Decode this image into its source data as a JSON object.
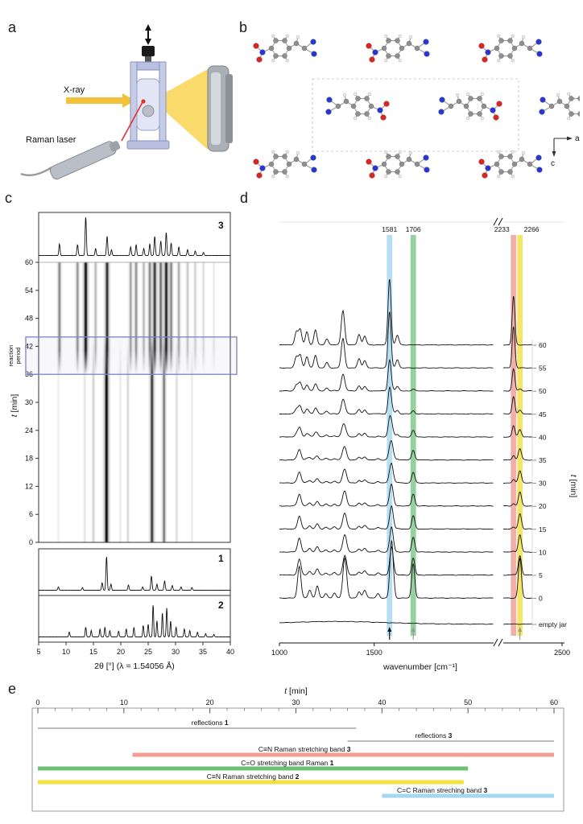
{
  "figure": {
    "letters": {
      "a": "a",
      "b": "b",
      "c": "c",
      "d": "d",
      "e": "e"
    }
  },
  "panel_a": {
    "xray_label": "X-ray",
    "raman_label": "Raman laser"
  },
  "panel_b": {
    "axis_labels": {
      "a": "a",
      "c": "c"
    }
  },
  "chart_data": [
    {
      "id": "panel_c_xrd_map",
      "type": "heatmap",
      "xlabel": "2θ [°] (λ = 1.54056 Å)",
      "ylabel_var": "t",
      "ylabel_rest": " [min]",
      "xlim": [
        5,
        40
      ],
      "x_ticks": [
        5,
        10,
        15,
        20,
        25,
        30,
        35,
        40
      ],
      "ylim": [
        0,
        60
      ],
      "y_ticks": [
        0,
        6,
        12,
        18,
        24,
        30,
        36,
        42,
        48,
        54,
        60
      ],
      "reaction_period": {
        "label_line1": "reaction",
        "label_line2": "period",
        "t_start": 36,
        "t_end": 44,
        "color": "#7b81cc"
      },
      "trace_labels": {
        "product": "3",
        "reactant1": "1",
        "reactant2": "2"
      },
      "reactant_streaks": [
        [
          17.4,
          1.0
        ],
        [
          25.7,
          0.8
        ],
        [
          27.9,
          0.55
        ],
        [
          15.0,
          0.2
        ],
        [
          21.3,
          0.18
        ],
        [
          13.4,
          0.12
        ],
        [
          30.2,
          0.15
        ],
        [
          33.0,
          0.1
        ],
        [
          8.6,
          0.08
        ],
        [
          19.9,
          0.1
        ]
      ],
      "product_streaks": [
        [
          8.8,
          0.5
        ],
        [
          12.1,
          0.45
        ],
        [
          13.6,
          0.95
        ],
        [
          15.4,
          0.3
        ],
        [
          17.5,
          0.85
        ],
        [
          21.8,
          0.4
        ],
        [
          22.8,
          0.45
        ],
        [
          24.2,
          0.3
        ],
        [
          25.3,
          0.5
        ],
        [
          26.2,
          0.8
        ],
        [
          27.3,
          0.6
        ],
        [
          28.3,
          0.9
        ],
        [
          29.2,
          0.5
        ],
        [
          30.6,
          0.35
        ],
        [
          32.2,
          0.25
        ],
        [
          33.6,
          0.2
        ],
        [
          35.1,
          0.15
        ],
        [
          37.0,
          0.1
        ]
      ],
      "pattern_3_peaks": [
        [
          8.8,
          0.3
        ],
        [
          12.1,
          0.28
        ],
        [
          13.6,
          1.0
        ],
        [
          15.4,
          0.18
        ],
        [
          17.5,
          0.5
        ],
        [
          18.3,
          0.15
        ],
        [
          21.8,
          0.22
        ],
        [
          22.8,
          0.28
        ],
        [
          24.2,
          0.18
        ],
        [
          25.3,
          0.3
        ],
        [
          26.2,
          0.5
        ],
        [
          27.3,
          0.38
        ],
        [
          28.3,
          0.6
        ],
        [
          29.2,
          0.32
        ],
        [
          30.6,
          0.22
        ],
        [
          32.2,
          0.15
        ],
        [
          33.6,
          0.12
        ],
        [
          35.1,
          0.08
        ]
      ],
      "pattern_1_peaks": [
        [
          8.6,
          0.1
        ],
        [
          13.0,
          0.08
        ],
        [
          16.6,
          0.22
        ],
        [
          17.4,
          1.0
        ],
        [
          18.2,
          0.18
        ],
        [
          21.4,
          0.16
        ],
        [
          24.0,
          0.1
        ],
        [
          25.6,
          0.42
        ],
        [
          26.6,
          0.18
        ],
        [
          28.0,
          0.28
        ],
        [
          29.4,
          0.14
        ],
        [
          31.0,
          0.1
        ],
        [
          33.0,
          0.08
        ]
      ],
      "pattern_2_peaks": [
        [
          10.6,
          0.15
        ],
        [
          13.6,
          0.3
        ],
        [
          14.6,
          0.2
        ],
        [
          16.2,
          0.25
        ],
        [
          17.1,
          0.3
        ],
        [
          18.0,
          0.2
        ],
        [
          19.6,
          0.18
        ],
        [
          21.0,
          0.25
        ],
        [
          22.4,
          0.3
        ],
        [
          24.1,
          0.35
        ],
        [
          25.0,
          0.4
        ],
        [
          25.9,
          1.0
        ],
        [
          26.6,
          0.5
        ],
        [
          27.6,
          0.75
        ],
        [
          28.4,
          0.9
        ],
        [
          29.1,
          0.5
        ],
        [
          30.1,
          0.3
        ],
        [
          31.6,
          0.25
        ],
        [
          32.6,
          0.2
        ],
        [
          34.0,
          0.15
        ],
        [
          35.5,
          0.1
        ],
        [
          37.0,
          0.08
        ]
      ]
    },
    {
      "id": "panel_d_raman",
      "type": "line",
      "xlabel": "wavenumber [cm⁻¹]",
      "ylabel_var": "t",
      "ylabel_rest": " [min]",
      "x_ticks_left": [
        1000,
        1500
      ],
      "x_ticks_right": [
        2500
      ],
      "band_markers": [
        {
          "label": "1581",
          "value": 1581,
          "color": "#a9d9ee"
        },
        {
          "label": "1706",
          "value": 1706,
          "color": "#83c88e"
        },
        {
          "label": "2233",
          "value": 2233,
          "color": "#f0a19a"
        },
        {
          "label": "2266",
          "value": 2266,
          "color": "#f2e24f"
        }
      ],
      "reactant_peaks": [
        [
          1105,
          0.72,
          9
        ],
        [
          1160,
          0.18,
          8
        ],
        [
          1200,
          0.28,
          8
        ],
        [
          1245,
          0.1,
          8
        ],
        [
          1290,
          0.12,
          8
        ],
        [
          1345,
          0.9,
          10
        ],
        [
          1420,
          0.14,
          8
        ],
        [
          1450,
          0.18,
          9
        ],
        [
          1520,
          0.1,
          8
        ],
        [
          1592,
          1.3,
          9
        ],
        [
          1706,
          0.78,
          8
        ],
        [
          2266,
          0.9,
          8
        ]
      ],
      "product_peaks": [
        [
          1090,
          0.3,
          9
        ],
        [
          1110,
          0.34,
          8
        ],
        [
          1145,
          0.3,
          8
        ],
        [
          1190,
          0.34,
          8
        ],
        [
          1250,
          0.14,
          8
        ],
        [
          1335,
          0.78,
          9
        ],
        [
          1420,
          0.24,
          8
        ],
        [
          1450,
          0.2,
          8
        ],
        [
          1581,
          1.5,
          8
        ],
        [
          1622,
          0.22,
          8
        ],
        [
          2233,
          1.1,
          7
        ]
      ],
      "traces": [
        {
          "label": "60",
          "mix": 1.0,
          "amp": 1.0
        },
        {
          "label": "55",
          "mix": 1.0,
          "amp": 0.85
        },
        {
          "label": "50",
          "mix": 0.9,
          "amp": 0.5
        },
        {
          "label": "45",
          "mix": 0.8,
          "amp": 0.45
        },
        {
          "label": "40",
          "mix": 0.55,
          "amp": 0.42
        },
        {
          "label": "35",
          "mix": 0.25,
          "amp": 0.38
        },
        {
          "label": "30",
          "mix": 0.18,
          "amp": 0.38
        },
        {
          "label": "20",
          "mix": 0.12,
          "amp": 0.4
        },
        {
          "label": "15",
          "mix": 0.08,
          "amp": 0.42
        },
        {
          "label": "10",
          "mix": 0.05,
          "amp": 0.45
        },
        {
          "label": "5",
          "mix": 0.02,
          "amp": 0.5
        },
        {
          "label": "0",
          "mix": 0.0,
          "amp": 1.0
        },
        {
          "label": "empty jar",
          "mix": 0.0,
          "amp": 0.0,
          "empty": true
        }
      ],
      "arrows": [
        {
          "at": 1581,
          "color": "#111111"
        },
        {
          "at": 1706,
          "color": "#9a9a9a"
        },
        {
          "at": 2266,
          "color": "#9a9a9a"
        }
      ]
    },
    {
      "id": "panel_e_timeline",
      "type": "bar",
      "title_var": "t",
      "title_rest": " [min]",
      "xlim": [
        0,
        60
      ],
      "x_ticks": [
        0,
        10,
        20,
        30,
        40,
        50,
        60
      ],
      "bars": [
        {
          "label": "reflections 1",
          "start": 0,
          "end": 37,
          "style": "line",
          "color": "#777777",
          "label_t": 20
        },
        {
          "label": "reflections 3",
          "start": 36,
          "end": 60,
          "style": "line",
          "color": "#777777",
          "label_t": 46
        },
        {
          "label": "C≡N Raman stretching band 3",
          "start": 11,
          "end": 60,
          "style": "bar",
          "color": "#f19d94",
          "label_t": 31
        },
        {
          "label": "C=O stretching band Raman 1",
          "start": 0,
          "end": 50,
          "style": "bar",
          "color": "#6fc077",
          "label_t": 29
        },
        {
          "label": "C≡N Raman stretching band 2",
          "start": 0,
          "end": 49.5,
          "style": "bar",
          "color": "#f2e23d",
          "label_t": 25
        },
        {
          "label": "C=C Raman streching band 3",
          "start": 40,
          "end": 60,
          "style": "bar",
          "color": "#a5d8f0",
          "label_t": 47
        }
      ]
    }
  ]
}
